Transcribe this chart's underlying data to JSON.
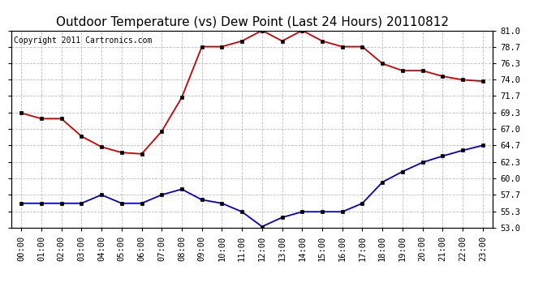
{
  "title": "Outdoor Temperature (vs) Dew Point (Last 24 Hours) 20110812",
  "copyright_text": "Copyright 2011 Cartronics.com",
  "x_labels": [
    "00:00",
    "01:00",
    "02:00",
    "03:00",
    "04:00",
    "05:00",
    "06:00",
    "07:00",
    "08:00",
    "09:00",
    "10:00",
    "11:00",
    "12:00",
    "13:00",
    "14:00",
    "15:00",
    "16:00",
    "17:00",
    "18:00",
    "19:00",
    "20:00",
    "21:00",
    "22:00",
    "23:00"
  ],
  "temp_data": [
    69.3,
    68.5,
    68.5,
    66.0,
    64.5,
    63.7,
    63.5,
    66.7,
    71.5,
    78.7,
    78.7,
    79.5,
    81.0,
    79.5,
    81.0,
    79.5,
    78.7,
    78.7,
    76.3,
    75.3,
    75.3,
    74.5,
    74.0,
    73.8
  ],
  "dew_data": [
    56.5,
    56.5,
    56.5,
    56.5,
    57.7,
    56.5,
    56.5,
    57.7,
    58.5,
    57.0,
    56.5,
    55.3,
    53.2,
    54.5,
    55.3,
    55.3,
    55.3,
    56.5,
    59.5,
    61.0,
    62.3,
    63.2,
    64.0,
    64.7
  ],
  "temp_color": "#cc0000",
  "dew_color": "#0000cc",
  "ylim_min": 53.0,
  "ylim_max": 81.0,
  "yticks": [
    53.0,
    55.3,
    57.7,
    60.0,
    62.3,
    64.7,
    67.0,
    69.3,
    71.7,
    74.0,
    76.3,
    78.7,
    81.0
  ],
  "bg_color": "#ffffff",
  "grid_color": "#bbbbbb",
  "title_fontsize": 11,
  "copyright_fontsize": 7,
  "tick_fontsize": 7.5
}
